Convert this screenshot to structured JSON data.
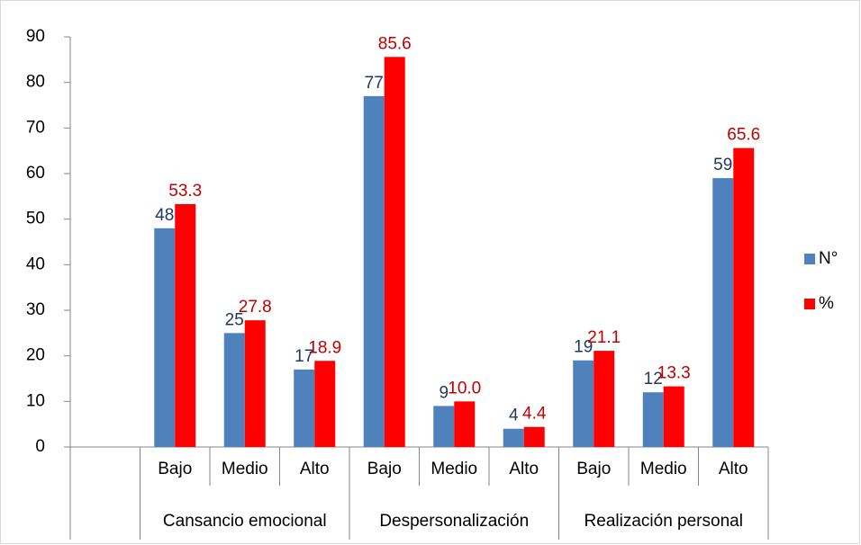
{
  "chart_data": {
    "type": "bar",
    "categories": [
      null,
      "Bajo",
      "Medio",
      "Alto",
      "Bajo",
      "Medio",
      "Alto",
      "Bajo",
      "Medio",
      "Alto"
    ],
    "category_groups": [
      null,
      "Cansancio emocional",
      "Cansancio emocional",
      "Cansancio emocional",
      "Despersonalización",
      "Despersonalización",
      "Despersonalización",
      "Realización personal",
      "Realización personal",
      "Realización personal"
    ],
    "series": [
      {
        "name": "N°",
        "color": "#4f81bd",
        "label_color": "#1f3864",
        "values": [
          null,
          48,
          25,
          17,
          77,
          9,
          4,
          19,
          12,
          59
        ]
      },
      {
        "name": "%",
        "color": "#ff0000",
        "label_color": "#c00000",
        "values": [
          null,
          53.3,
          27.8,
          18.9,
          85.6,
          10.0,
          4.4,
          21.1,
          13.3,
          65.6
        ],
        "value_labels": [
          null,
          "53.3",
          "27.8",
          "18.9",
          "85.6",
          "10.0",
          "4.4",
          "21.1",
          "13.3",
          "65.6"
        ]
      }
    ],
    "ylim": [
      0,
      90
    ],
    "yticks": [
      0,
      10,
      20,
      30,
      40,
      50,
      60,
      70,
      80,
      90
    ],
    "grid": false,
    "legend": "right"
  }
}
